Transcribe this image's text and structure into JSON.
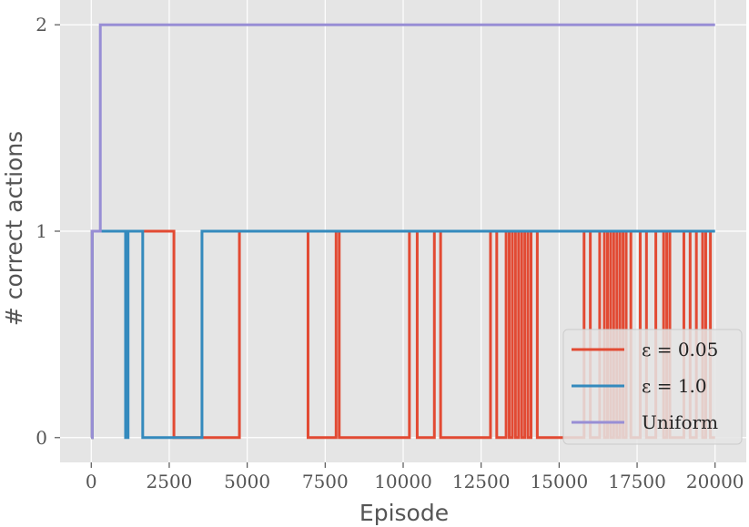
{
  "chart_data": {
    "type": "line",
    "xlabel": "Episode",
    "ylabel": "# correct actions",
    "xlim": [
      -1000,
      21000
    ],
    "ylim": [
      -0.12,
      2.12
    ],
    "xticks": [
      0,
      2500,
      5000,
      7500,
      10000,
      12500,
      15000,
      17500,
      20000
    ],
    "xtick_labels": [
      "0",
      "2500",
      "5000",
      "7500",
      "10000",
      "12500",
      "15000",
      "17500",
      "20000"
    ],
    "yticks": [
      0,
      1,
      2
    ],
    "ytick_labels": [
      "0",
      "1",
      "2"
    ],
    "grid": true,
    "legend_position": "lower-right",
    "series": [
      {
        "name": "ε = 0.05",
        "color": "#e24a33",
        "x": [
          0,
          30,
          30,
          2650,
          2650,
          4750,
          4750,
          6950,
          6950,
          7850,
          7850,
          7950,
          7950,
          10200,
          10200,
          10450,
          10450,
          11000,
          11000,
          11200,
          11200,
          12800,
          12800,
          13000,
          13000,
          13300,
          13300,
          13400,
          13400,
          13500,
          13500,
          13600,
          13600,
          13700,
          13700,
          13800,
          13800,
          13900,
          13900,
          14000,
          14000,
          14100,
          14100,
          14300,
          14300,
          15800,
          15800,
          16000,
          16000,
          16300,
          16300,
          16450,
          16450,
          16550,
          16550,
          16650,
          16650,
          16750,
          16750,
          16850,
          16850,
          16950,
          16950,
          17050,
          17050,
          17150,
          17150,
          17300,
          17300,
          17600,
          17600,
          17800,
          17800,
          18100,
          18100,
          18350,
          18350,
          18450,
          18450,
          18550,
          18550,
          19000,
          19000,
          19200,
          19200,
          19400,
          19400,
          19600,
          19600,
          19700,
          19700,
          19850,
          19850,
          20000
        ],
        "y": [
          0,
          0,
          1,
          1,
          0,
          0,
          1,
          1,
          0,
          0,
          1,
          1,
          0,
          0,
          1,
          1,
          0,
          0,
          1,
          1,
          0,
          0,
          1,
          1,
          0,
          0,
          1,
          1,
          0,
          0,
          1,
          1,
          0,
          0,
          1,
          1,
          0,
          0,
          1,
          1,
          0,
          0,
          1,
          1,
          0,
          0,
          1,
          1,
          0,
          0,
          1,
          1,
          0,
          0,
          1,
          1,
          0,
          0,
          1,
          1,
          0,
          0,
          1,
          1,
          0,
          0,
          1,
          1,
          0,
          0,
          1,
          1,
          0,
          0,
          1,
          1,
          0,
          0,
          1,
          1,
          0,
          0,
          1,
          1,
          0,
          0,
          1,
          1,
          0,
          0,
          1,
          1,
          0,
          0
        ]
      },
      {
        "name": "ε = 1.0",
        "color": "#348abd",
        "x": [
          0,
          30,
          30,
          1100,
          1100,
          1180,
          1180,
          1650,
          1650,
          3550,
          3550,
          20000
        ],
        "y": [
          0,
          0,
          1,
          1,
          0,
          0,
          1,
          1,
          0,
          0,
          1,
          1
        ]
      },
      {
        "name": "Uniform",
        "color": "#988ed5",
        "x": [
          0,
          30,
          30,
          290,
          290,
          20000
        ],
        "y": [
          0,
          0,
          1,
          1,
          2,
          2
        ]
      }
    ]
  }
}
